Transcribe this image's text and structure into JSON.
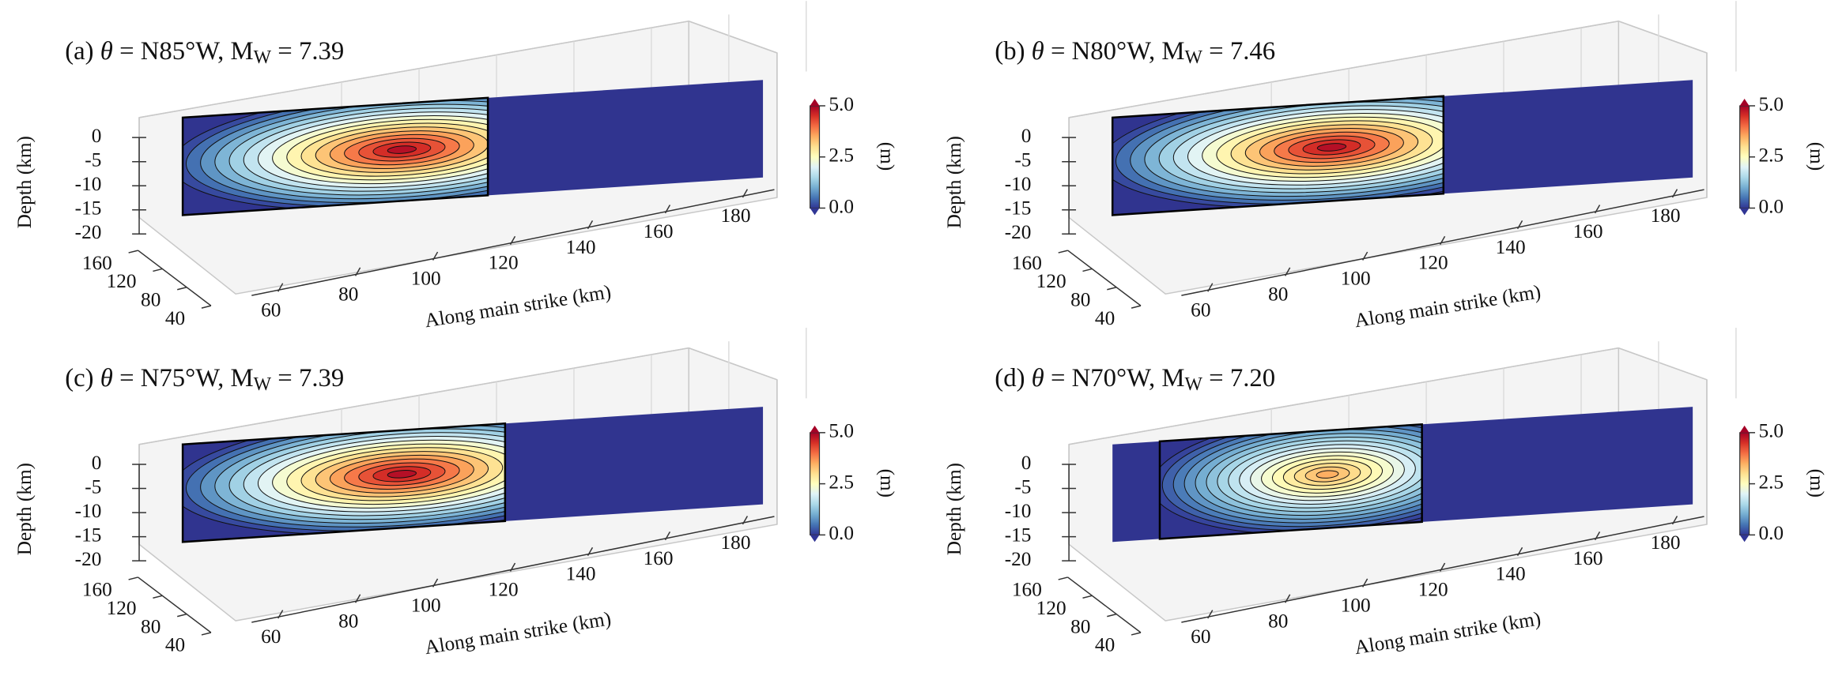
{
  "chart_data": [
    {
      "type": "surface",
      "title_parts": [
        "(a) ",
        "θ",
        " = N85°W, M",
        "W",
        " = 7.39"
      ],
      "zlabel": "Depth (km)",
      "xlabel": "Along main strike (km)",
      "xlim": [
        55,
        190
      ],
      "xticks": [
        60,
        80,
        100,
        120,
        140,
        160,
        180
      ],
      "ylim": [
        40,
        160
      ],
      "yticks": [
        160,
        120,
        80,
        40
      ],
      "zlim": [
        -20,
        0
      ],
      "zticks": [
        0,
        -5,
        -10,
        -15,
        -20
      ],
      "plane_color": "#30348f",
      "colorbar": {
        "label": "(m)",
        "cmap": "RdYlBu_r",
        "lim": [
          0,
          5
        ],
        "ticks": [
          {
            "value": 5,
            "label": "5.0"
          },
          {
            "value": 2.5,
            "label": "2.5"
          },
          {
            "value": 0,
            "label": "0.0"
          }
        ]
      },
      "slip_patch": {
        "x_start": 55,
        "x_end": 126,
        "peak_x": 106,
        "peak_depth": -9.5,
        "peak_slip": 5.0
      }
    },
    {
      "type": "surface",
      "title_parts": [
        "(b) ",
        "θ",
        " = N80°W, M",
        "W",
        " = 7.46"
      ],
      "zlabel": "Depth (km)",
      "xlabel": "Along main strike (km)",
      "xlim": [
        55,
        190
      ],
      "xticks": [
        60,
        80,
        100,
        120,
        140,
        160,
        180
      ],
      "ylim": [
        40,
        160
      ],
      "yticks": [
        160,
        120,
        80,
        40
      ],
      "zlim": [
        -20,
        0
      ],
      "zticks": [
        0,
        -5,
        -10,
        -15,
        -20
      ],
      "plane_color": "#30348f",
      "colorbar": {
        "label": "(m)",
        "cmap": "RdYlBu_r",
        "lim": [
          0,
          5
        ],
        "ticks": [
          {
            "value": 5,
            "label": "5.0"
          },
          {
            "value": 2.5,
            "label": "2.5"
          },
          {
            "value": 0,
            "label": "0.0"
          }
        ]
      },
      "slip_patch": {
        "x_start": 55,
        "x_end": 132,
        "peak_x": 106,
        "peak_depth": -9,
        "peak_slip": 5.0
      }
    },
    {
      "type": "surface",
      "title_parts": [
        "(c) ",
        "θ",
        " = N75°W, M",
        "W",
        " = 7.39"
      ],
      "zlabel": "Depth (km)",
      "xlabel": "Along main strike (km)",
      "xlim": [
        55,
        190
      ],
      "xticks": [
        60,
        80,
        100,
        120,
        140,
        160,
        180
      ],
      "ylim": [
        40,
        160
      ],
      "yticks": [
        160,
        120,
        80,
        40
      ],
      "zlim": [
        -20,
        0
      ],
      "zticks": [
        0,
        -5,
        -10,
        -15,
        -20
      ],
      "plane_color": "#30348f",
      "colorbar": {
        "label": "(m)",
        "cmap": "RdYlBu_r",
        "lim": [
          0,
          5
        ],
        "ticks": [
          {
            "value": 5,
            "label": "5.0"
          },
          {
            "value": 2.5,
            "label": "2.5"
          },
          {
            "value": 0,
            "label": "0.0"
          }
        ]
      },
      "slip_patch": {
        "x_start": 55,
        "x_end": 130,
        "peak_x": 106,
        "peak_depth": -9,
        "peak_slip": 5.0
      }
    },
    {
      "type": "surface",
      "title_parts": [
        "(d) ",
        "θ",
        " = N70°W, M",
        "W",
        " = 7.20"
      ],
      "zlabel": "Depth (km)",
      "xlabel": "Along main strike (km)",
      "xlim": [
        55,
        190
      ],
      "xticks": [
        60,
        80,
        100,
        120,
        140,
        160,
        180
      ],
      "ylim": [
        40,
        160
      ],
      "yticks": [
        160,
        120,
        80,
        40
      ],
      "zlim": [
        -20,
        0
      ],
      "zticks": [
        0,
        -5,
        -10,
        -15,
        -20
      ],
      "plane_color": "#30348f",
      "colorbar": {
        "label": "(m)",
        "cmap": "RdYlBu_r",
        "lim": [
          0,
          5
        ],
        "ticks": [
          {
            "value": 5,
            "label": "5.0"
          },
          {
            "value": 2.5,
            "label": "2.5"
          },
          {
            "value": 0,
            "label": "0.0"
          }
        ]
      },
      "slip_patch": {
        "x_start": 66,
        "x_end": 127,
        "peak_x": 105,
        "peak_depth": -9,
        "peak_slip": 3.6
      }
    }
  ]
}
